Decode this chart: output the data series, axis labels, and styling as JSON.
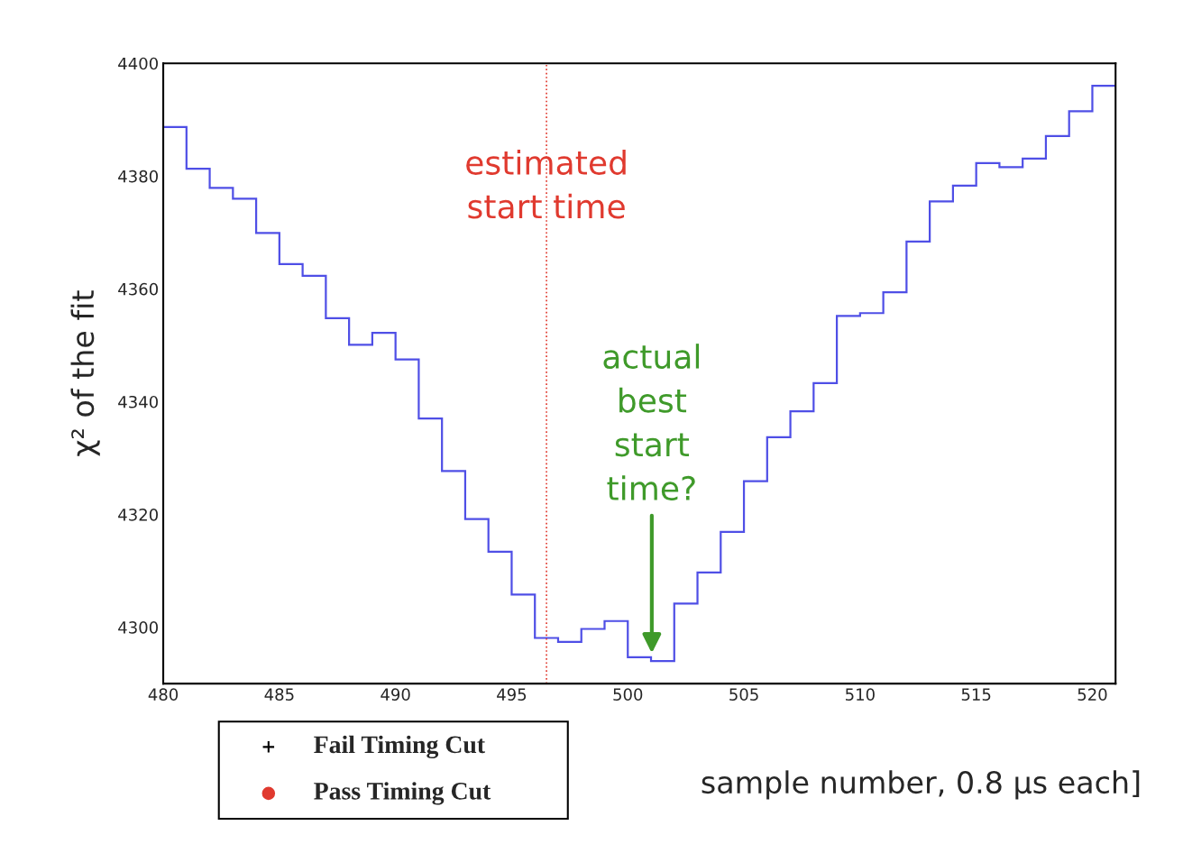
{
  "chart_data": {
    "type": "histogram",
    "ylabel": "χ² of the fit",
    "xlabel": "sample number, 0.8 μs each]",
    "bins": [
      480,
      481,
      482,
      483,
      484,
      485,
      486,
      487,
      488,
      489,
      490,
      491,
      492,
      493,
      494,
      495,
      496,
      497,
      498,
      499,
      500,
      501,
      502,
      503,
      504,
      505,
      506,
      507,
      508,
      509,
      510,
      511,
      512,
      513,
      514,
      515,
      516,
      517,
      518,
      519,
      520,
      521
    ],
    "color": "#4f4fe6",
    "values": [
      4388.7,
      4381.3,
      4377.9,
      4376.0,
      4369.9,
      4364.4,
      4362.3,
      4354.8,
      4350.1,
      4352.2,
      4347.5,
      4337.0,
      4327.7,
      4319.2,
      4313.4,
      4305.8,
      4298.1,
      4297.4,
      4299.7,
      4301.1,
      4294.7,
      4294.0,
      4304.2,
      4309.7,
      4316.9,
      4325.9,
      4333.7,
      4338.3,
      4343.3,
      4355.2,
      4355.7,
      4359.4,
      4368.4,
      4375.5,
      4378.3,
      4382.3,
      4381.6,
      4383.1,
      4387.1,
      4391.5,
      4396.0
    ],
    "xlim": [
      480,
      521
    ],
    "ylim": [
      4290,
      4400
    ],
    "xticks": [
      480,
      485,
      490,
      495,
      500,
      505,
      510,
      515,
      520
    ],
    "yticks": [
      4300,
      4320,
      4340,
      4360,
      4380,
      4400
    ],
    "grid": false,
    "ref_lines": [
      {
        "axis": "x",
        "value": 496.5,
        "label": "estimated\nstart time",
        "color": "#e03a2f",
        "line_style": "dotted"
      }
    ],
    "annotations": [
      "actual\nbest\nstart\ntime?",
      "Fail Timing Cut",
      "Pass Timing Cut"
    ]
  }
}
